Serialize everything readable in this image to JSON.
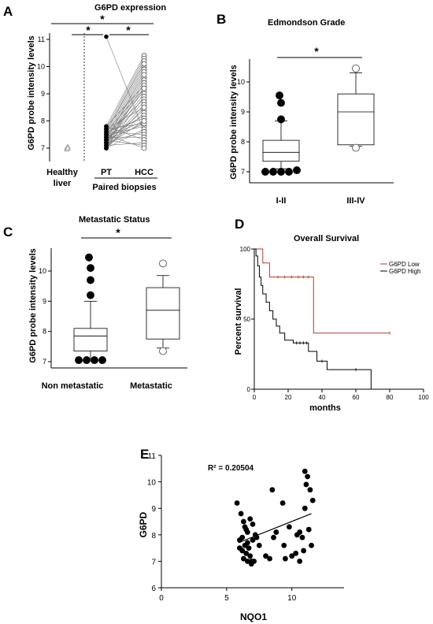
{
  "panels": {
    "a": {
      "letter": "A",
      "title": "G6PD expression",
      "ylabel": "G6PD probe intensity levels",
      "cat1": "Healthy",
      "cat1b": "liver",
      "cat2": "PT",
      "cat3": "HCC",
      "group": "Paired biopsies",
      "star1": "*",
      "star2": "*",
      "star3": "*",
      "yticks": [
        "7",
        "8",
        "9",
        "10",
        "11"
      ]
    },
    "b": {
      "letter": "B",
      "title": "Edmondson Grade",
      "ylabel": "G6PD probe intensity levels",
      "cats": [
        "I-II",
        "III-IV"
      ],
      "star": "*",
      "yticks": [
        "7",
        "8",
        "9",
        "10"
      ]
    },
    "c": {
      "letter": "C",
      "title": "Metastatic Status",
      "ylabel": "G6PD probe intensity levels",
      "cats": [
        "Non metastatic",
        "Metastatic"
      ],
      "star": "*",
      "yticks": [
        "7",
        "8",
        "9",
        "10"
      ]
    },
    "d": {
      "letter": "D",
      "title": "Overall Survival",
      "ylabel": "Percent survival",
      "xlabel": "months",
      "xticks": [
        "0",
        "20",
        "40",
        "60",
        "80",
        "100"
      ],
      "yticks": [
        "0",
        "50",
        "100"
      ],
      "legend_low": "G6PD Low",
      "legend_high": "G6PD High"
    },
    "e": {
      "letter": "E",
      "annotation": "R² = 0.20504",
      "ylabel": "G6PD",
      "xlabel": "NQO1",
      "xticks": [
        "0",
        "5",
        "10"
      ],
      "yticks": [
        "6",
        "7",
        "8",
        "9",
        "10",
        "11"
      ]
    }
  },
  "colors": {
    "low": "#b03a2e",
    "high": "#000000"
  },
  "chart_data": [
    {
      "panel": "A",
      "type": "scatter",
      "title": "G6PD expression",
      "ylabel": "G6PD probe intensity levels",
      "ylim": [
        6.6,
        11.4
      ],
      "groups": [
        "Healthy liver",
        "PT",
        "HCC"
      ],
      "group_label": "Paired biopsies",
      "healthy_liver": [
        7.0,
        7.05,
        6.95,
        7.0
      ],
      "paired_pt_hcc": [
        [
          11.1,
          7.6
        ],
        [
          7.8,
          10.4
        ],
        [
          7.7,
          10.3
        ],
        [
          7.6,
          10.2
        ],
        [
          7.5,
          10.0
        ],
        [
          7.4,
          9.9
        ],
        [
          7.3,
          9.8
        ],
        [
          7.2,
          9.6
        ],
        [
          7.1,
          9.5
        ],
        [
          7.0,
          9.4
        ],
        [
          7.8,
          9.3
        ],
        [
          7.6,
          9.2
        ],
        [
          7.4,
          9.1
        ],
        [
          7.2,
          9.0
        ],
        [
          7.0,
          8.9
        ],
        [
          7.5,
          8.8
        ],
        [
          7.3,
          8.7
        ],
        [
          7.1,
          8.6
        ],
        [
          7.7,
          8.5
        ],
        [
          7.2,
          8.4
        ],
        [
          7.0,
          8.3
        ],
        [
          7.4,
          8.2
        ],
        [
          7.6,
          8.1
        ],
        [
          7.1,
          8.0
        ],
        [
          7.3,
          7.9
        ],
        [
          7.5,
          7.8
        ],
        [
          7.0,
          7.7
        ],
        [
          7.2,
          7.6
        ],
        [
          7.6,
          7.5
        ],
        [
          7.4,
          7.4
        ],
        [
          7.8,
          7.3
        ],
        [
          7.1,
          7.2
        ],
        [
          7.3,
          7.1
        ],
        [
          7.5,
          7.0
        ],
        [
          7.7,
          7.9
        ],
        [
          7.0,
          8.5
        ],
        [
          7.2,
          9.2
        ],
        [
          7.4,
          8.0
        ],
        [
          7.6,
          10.1
        ],
        [
          7.3,
          9.7
        ]
      ],
      "significance": [
        "*",
        "*",
        "*"
      ]
    },
    {
      "panel": "B",
      "type": "box",
      "title": "Edmondson Grade",
      "ylabel": "G6PD probe intensity levels",
      "categories": [
        "I-II",
        "III-IV"
      ],
      "ylim": [
        6.6,
        10.8
      ],
      "boxes": [
        {
          "whisker_low": 7.1,
          "q1": 7.35,
          "median": 7.65,
          "q3": 8.05,
          "whisker_high": 8.7,
          "outliers": [
            9.55,
            9.3,
            8.75,
            7.0,
            7.0,
            7.0,
            7.0,
            7.05
          ]
        },
        {
          "whisker_low": 7.85,
          "q1": 7.9,
          "median": 9.0,
          "q3": 9.6,
          "whisker_high": 10.3,
          "outliers": [
            10.45,
            7.8
          ]
        }
      ],
      "significance": "*"
    },
    {
      "panel": "C",
      "type": "box",
      "title": "Metastatic Status",
      "ylabel": "G6PD probe intensity levels",
      "categories": [
        "Non metastatic",
        "Metastatic"
      ],
      "ylim": [
        6.6,
        10.8
      ],
      "boxes": [
        {
          "whisker_low": 7.1,
          "q1": 7.35,
          "median": 7.85,
          "q3": 8.1,
          "whisker_high": 9.0,
          "outliers": [
            10.45,
            10.1,
            9.7,
            9.2,
            7.05,
            7.05,
            7.05,
            7.05
          ]
        },
        {
          "whisker_low": 7.45,
          "q1": 7.75,
          "median": 8.7,
          "q3": 9.45,
          "whisker_high": 9.85,
          "outliers": [
            10.25,
            7.35
          ]
        }
      ],
      "significance": "*"
    },
    {
      "panel": "D",
      "type": "line",
      "title": "Overall Survival",
      "xlabel": "months",
      "ylabel": "Percent survival",
      "xlim": [
        0,
        100
      ],
      "ylim": [
        0,
        100
      ],
      "series": [
        {
          "name": "G6PD Low",
          "points": [
            [
              0,
              100
            ],
            [
              5,
              100
            ],
            [
              5,
              90
            ],
            [
              9,
              90
            ],
            [
              9,
              80
            ],
            [
              35,
              80
            ],
            [
              35,
              40
            ],
            [
              80,
              40
            ]
          ],
          "censor": [
            14,
            18,
            22,
            26,
            29,
            32,
            80
          ]
        },
        {
          "name": "G6PD High",
          "points": [
            [
              0,
              100
            ],
            [
              1,
              100
            ],
            [
              1,
              95
            ],
            [
              2,
              95
            ],
            [
              2,
              88
            ],
            [
              3,
              88
            ],
            [
              3,
              80
            ],
            [
              4,
              80
            ],
            [
              4,
              74
            ],
            [
              5,
              74
            ],
            [
              5,
              68
            ],
            [
              7,
              68
            ],
            [
              7,
              62
            ],
            [
              9,
              62
            ],
            [
              9,
              56
            ],
            [
              11,
              56
            ],
            [
              11,
              50
            ],
            [
              13,
              50
            ],
            [
              13,
              45
            ],
            [
              15,
              45
            ],
            [
              15,
              40
            ],
            [
              18,
              40
            ],
            [
              18,
              35
            ],
            [
              23,
              35
            ],
            [
              23,
              33
            ],
            [
              32,
              33
            ],
            [
              32,
              27
            ],
            [
              37,
              27
            ],
            [
              37,
              20
            ],
            [
              43,
              20
            ],
            [
              43,
              14
            ],
            [
              69,
              14
            ],
            [
              69,
              0
            ]
          ],
          "censor": [
            25,
            27,
            29,
            31,
            40,
            60
          ]
        }
      ],
      "legend": "top-right"
    },
    {
      "panel": "E",
      "type": "scatter",
      "xlabel": "NQO1",
      "ylabel": "G6PD",
      "xlim": [
        0,
        14
      ],
      "ylim": [
        6,
        11
      ],
      "annotation": "R² = 0.20504",
      "trendline": [
        [
          5.9,
          7.7
        ],
        [
          11.5,
          8.8
        ]
      ],
      "points": [
        [
          5.8,
          9.2
        ],
        [
          6.1,
          8.8
        ],
        [
          6.3,
          8.5
        ],
        [
          6.4,
          8.3
        ],
        [
          6.5,
          8.2
        ],
        [
          6.6,
          8.1
        ],
        [
          6.2,
          7.9
        ],
        [
          6.0,
          7.8
        ],
        [
          6.4,
          7.6
        ],
        [
          6.7,
          7.5
        ],
        [
          6.5,
          7.3
        ],
        [
          6.8,
          7.2
        ],
        [
          6.3,
          7.1
        ],
        [
          6.6,
          7.0
        ],
        [
          6.9,
          7.0
        ],
        [
          7.1,
          7.0
        ],
        [
          6.2,
          7.4
        ],
        [
          6.6,
          7.7
        ],
        [
          7.0,
          7.8
        ],
        [
          7.2,
          8.0
        ],
        [
          7.3,
          7.9
        ],
        [
          6.8,
          8.6
        ],
        [
          7.0,
          8.4
        ],
        [
          6.0,
          7.5
        ],
        [
          7.5,
          7.6
        ],
        [
          8.0,
          7.2
        ],
        [
          8.3,
          7.1
        ],
        [
          8.6,
          7.9
        ],
        [
          8.8,
          8.1
        ],
        [
          8.5,
          9.7
        ],
        [
          9.3,
          9.2
        ],
        [
          9.4,
          7.6
        ],
        [
          9.5,
          7.1
        ],
        [
          10.0,
          7.2
        ],
        [
          10.3,
          7.3
        ],
        [
          10.4,
          8.0
        ],
        [
          10.6,
          8.1
        ],
        [
          10.8,
          7.9
        ],
        [
          11.0,
          10.4
        ],
        [
          11.2,
          10.2
        ],
        [
          11.1,
          9.9
        ],
        [
          11.4,
          9.7
        ],
        [
          11.6,
          9.3
        ],
        [
          11.0,
          9.0
        ],
        [
          11.3,
          8.2
        ],
        [
          11.5,
          7.6
        ],
        [
          10.6,
          7.0
        ],
        [
          9.8,
          8.3
        ],
        [
          6.9,
          6.9
        ],
        [
          10.9,
          7.4
        ]
      ]
    }
  ]
}
